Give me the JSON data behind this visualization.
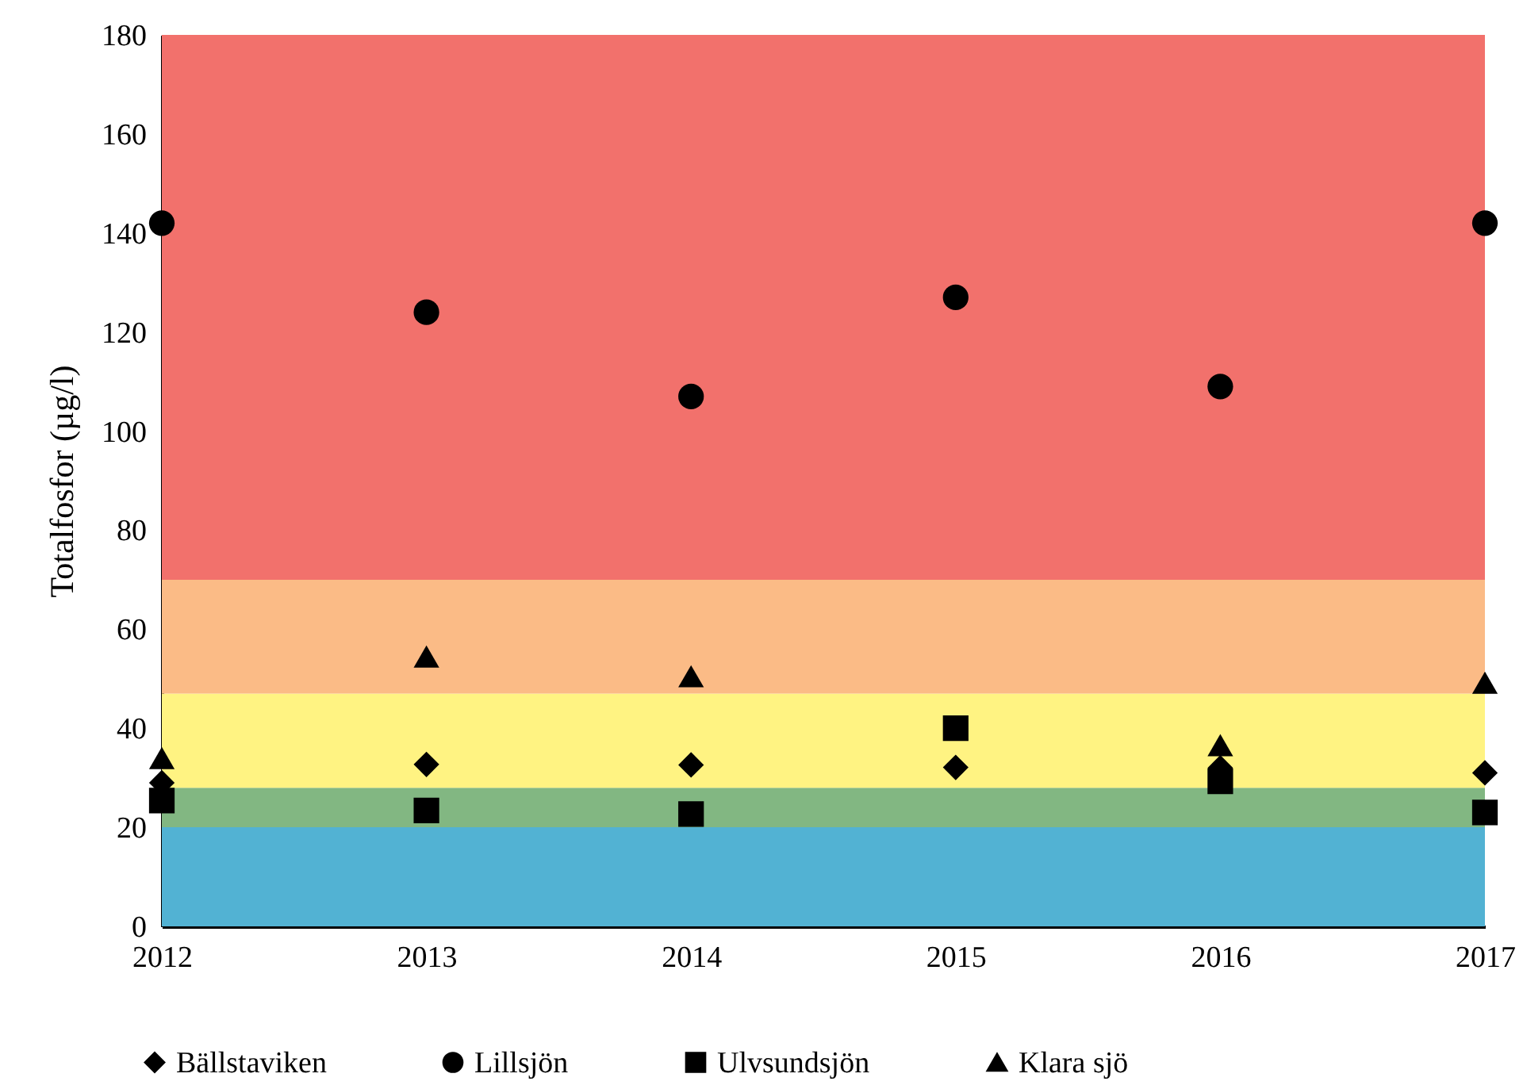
{
  "chart_data": {
    "type": "scatter",
    "ylabel": "Totalfosfor (µg/l)",
    "x": [
      2012,
      2013,
      2014,
      2015,
      2016,
      2017
    ],
    "xlim": [
      2012,
      2017
    ],
    "xticks": [
      2012,
      2013,
      2014,
      2015,
      2016,
      2017
    ],
    "ylim": [
      0,
      180
    ],
    "yticks": [
      0,
      20,
      40,
      60,
      80,
      100,
      120,
      140,
      160,
      180
    ],
    "legend": "bottom",
    "grid": false,
    "bands": [
      {
        "axis": "y",
        "from": 0,
        "to": 20,
        "color": "#52b2d3"
      },
      {
        "axis": "y",
        "from": 20,
        "to": 28,
        "color": "#82b782"
      },
      {
        "axis": "y",
        "from": 28,
        "to": 47,
        "color": "#fff382"
      },
      {
        "axis": "y",
        "from": 47,
        "to": 70,
        "color": "#fbbb86"
      },
      {
        "axis": "y",
        "from": 70,
        "to": 180,
        "color": "#f2716c"
      }
    ],
    "series": [
      {
        "name": "Bällstaviken",
        "color": "#000000",
        "marker": "diamond",
        "values": [
          29,
          32.7,
          32.6,
          32.1,
          32,
          31
        ]
      },
      {
        "name": "Lillsjön",
        "color": "#000000",
        "marker": "circle",
        "values": [
          142,
          124,
          107,
          127,
          109,
          142
        ]
      },
      {
        "name": "Ulvsundsjön",
        "color": "#000000",
        "marker": "square",
        "values": [
          25.4,
          23.4,
          22.7,
          40,
          29.3,
          23
        ]
      },
      {
        "name": "Klara sjö",
        "color": "#000000",
        "marker": "triangle",
        "values": [
          34,
          54.5,
          50.5,
          null,
          36.6,
          49.2
        ]
      }
    ]
  }
}
